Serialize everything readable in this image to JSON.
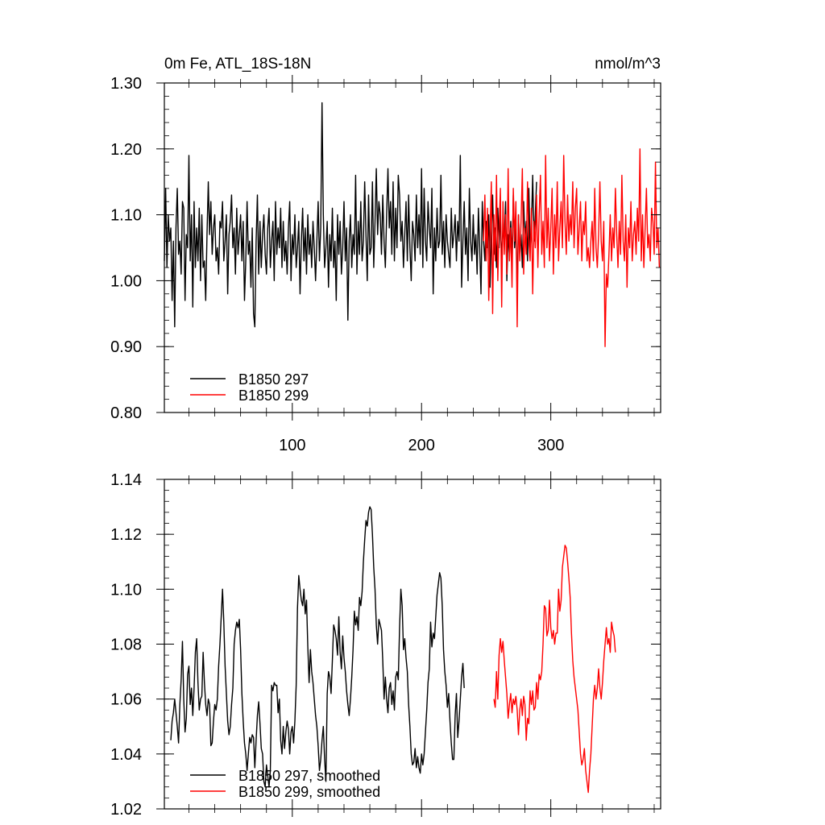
{
  "chart_data": [
    {
      "type": "line",
      "title": "0m Fe, ATL_18S-18N",
      "units": "nmol/m^3",
      "xlabel": "",
      "ylabel": "",
      "xlim": [
        1,
        385
      ],
      "ylim": [
        0.8,
        1.3
      ],
      "xticks": [
        100,
        200,
        300
      ],
      "xtick_labels": [
        "100",
        "200",
        "300"
      ],
      "yticks": [
        0.8,
        0.9,
        1.0,
        1.1,
        1.2,
        1.3
      ],
      "ytick_labels": [
        "0.80",
        "0.90",
        "1.00",
        "1.10",
        "1.20",
        "1.30"
      ],
      "grid": false,
      "legend_position": "bottom-left",
      "series": [
        {
          "name": "B1850 297",
          "color": "#000000",
          "x_start": 1,
          "values": [
            1.03,
            1.14,
            1.02,
            1.1,
            1.06,
            1.08,
            0.97,
            1.06,
            0.93,
            1.08,
            1.14,
            1.04,
            1.06,
            1.01,
            1.12,
            1.11,
            0.97,
            1.07,
            1.05,
            1.19,
            1.03,
            1.1,
            0.96,
            1.12,
            1.02,
            1.08,
            1.03,
            1.11,
            1.0,
            1.1,
            1.02,
            1.03,
            0.97,
            1.07,
            1.15,
            1.07,
            1.12,
            1.04,
            1.08,
            1.1,
            1.03,
            1.05,
            1.01,
            1.09,
            1.08,
            1.12,
            1.03,
            1.06,
            1.1,
            0.98,
            1.07,
            1.09,
            1.13,
            1.05,
            1.08,
            1.01,
            1.11,
            1.04,
            1.07,
            1.1,
            1.03,
            1.09,
            0.97,
            1.03,
            1.12,
            1.04,
            1.06,
            0.99,
            1.08,
            0.95,
            0.93,
            1.06,
            1.13,
            1.01,
            1.09,
            1.02,
            1.07,
            1.1,
            1.04,
            1.01,
            1.08,
            1.11,
            1.02,
            1.06,
            1.09,
            1.0,
            1.12,
            1.04,
            1.08,
            1.05,
            1.11,
            1.02,
            1.09,
            1.03,
            1.06,
            1.01,
            1.08,
            1.12,
            1.0,
            1.07,
            1.04,
            1.1,
            1.02,
            1.05,
            1.09,
            0.98,
            1.06,
            1.11,
            1.03,
            1.08,
            1.01,
            1.1,
            1.04,
            1.07,
            1.02,
            1.09,
            1.05,
            1.0,
            1.06,
            1.12,
            1.03,
            1.08,
            1.27,
            1.1,
            1.02,
            1.05,
            1.09,
            0.99,
            1.07,
            1.03,
            1.11,
            1.02,
            1.06,
            0.97,
            1.1,
            1.04,
            1.09,
            1.01,
            1.05,
            1.12,
            1.03,
            1.08,
            0.94,
            1.06,
            1.1,
            1.02,
            1.07,
            1.04,
            1.16,
            1.01,
            1.09,
            1.04,
            1.12,
            1.03,
            1.06,
            1.15,
            1.07,
            1.0,
            1.13,
            1.04,
            1.05,
            1.15,
            1.02,
            1.09,
            1.17,
            1.07,
            1.12,
            1.1,
            1.04,
            1.13,
            1.06,
            1.02,
            1.1,
            1.17,
            1.08,
            1.12,
            1.04,
            1.15,
            1.03,
            1.11,
            1.05,
            1.16,
            1.13,
            1.06,
            1.09,
            1.02,
            1.07,
            1.12,
            1.03,
            1.13,
            1.05,
            1.0,
            1.09,
            1.07,
            1.03,
            1.13,
            1.05,
            1.1,
            1.04,
            1.17,
            1.02,
            1.14,
            1.06,
            1.03,
            1.12,
            1.08,
            1.05,
            1.14,
            0.98,
            1.08,
            1.03,
            1.11,
            1.05,
            1.06,
            1.16,
            1.04,
            1.09,
            1.02,
            1.1,
            1.06,
            1.04,
            1.02,
            1.11,
            1.05,
            1.07,
            1.1,
            1.03,
            1.09,
            1.06,
            1.19,
            0.99,
            1.06,
            1.12,
            1.04,
            1.08,
            1.0,
            1.14,
            1.06,
            1.03,
            1.1,
            1.04,
            1.07,
            1.01,
            1.11,
            1.05,
            0.98,
            1.12,
            1.06,
            1.03,
            1.09,
            1.05,
            1.1,
            0.99,
            1.07,
            1.13,
            1.04,
            1.08,
            1.02,
            1.11,
            1.05,
            1.1,
            1.03,
            1.08,
            1.06,
            1.12,
            1.0,
            1.07,
            1.04,
            1.09,
            1.03,
            1.13,
            1.05,
            1.08,
            0.98,
            1.1,
            1.04,
            1.07,
            1.02,
            1.12,
            1.06,
            1.09,
            1.03,
            1.14,
            1.05,
            1.08,
            1.16,
            1.06,
            1.1,
            1.15
          ]
        },
        {
          "name": "B1850 299",
          "color": "#ff0000",
          "x_start": 248,
          "values": [
            1.06,
            1.13,
            1.03,
            1.11,
            0.97,
            1.07,
            1.15,
            0.95,
            1.1,
            1.03,
            1.16,
            1.0,
            1.08,
            1.14,
            0.96,
            1.12,
            1.04,
            1.1,
            1.01,
            1.17,
            1.03,
            1.08,
            0.99,
            1.14,
            1.06,
            1.12,
            0.93,
            1.1,
            1.03,
            1.09,
            1.17,
            1.01,
            1.08,
            1.04,
            1.15,
            1.06,
            1.03,
            1.11,
            0.98,
            1.09,
            1.05,
            1.13,
            1.02,
            1.1,
            1.16,
            1.04,
            1.09,
            1.02,
            1.19,
            1.05,
            1.11,
            1.03,
            1.08,
            1.14,
            1.01,
            1.1,
            1.05,
            1.15,
            1.03,
            1.08,
            1.12,
            1.05,
            1.19,
            1.09,
            1.04,
            1.13,
            1.06,
            1.1,
            1.07,
            1.15,
            1.05,
            1.11,
            1.14,
            1.04,
            1.08,
            1.12,
            1.03,
            1.09,
            1.07,
            1.12,
            1.03,
            1.05,
            1.02,
            1.06,
            1.09,
            1.03,
            1.14,
            1.05,
            1.02,
            1.07,
            1.15,
            1.06,
            1.03,
            1.09,
            0.9,
            1.01,
            0.99,
            1.04,
            1.1,
            1.03,
            1.08,
            1.05,
            1.14,
            1.07,
            1.02,
            1.09,
            1.04,
            1.16,
            1.06,
            1.03,
            1.1,
            0.99,
            1.08,
            1.05,
            1.12,
            1.03,
            1.07,
            1.09,
            1.04,
            1.11,
            1.06,
            1.2,
            1.03,
            1.1,
            1.02,
            1.08,
            1.14,
            1.05,
            1.07,
            1.03,
            1.11,
            1.09,
            1.04,
            1.18,
            1.05,
            1.08,
            1.02
          ]
        }
      ]
    },
    {
      "type": "line",
      "title": "",
      "xlabel": "",
      "ylabel": "",
      "xlim": [
        1,
        385
      ],
      "ylim": [
        1.02,
        1.14
      ],
      "xticks": [
        100,
        200,
        300
      ],
      "yticks": [
        1.02,
        1.04,
        1.06,
        1.08,
        1.1,
        1.12,
        1.14
      ],
      "ytick_labels": [
        "1.02",
        "1.04",
        "1.06",
        "1.08",
        "1.10",
        "1.12",
        "1.14"
      ],
      "grid": false,
      "legend_position": "bottom-left",
      "series": [
        {
          "name": "B1850 297, smoothed",
          "color": "#000000",
          "x_start": 6,
          "values": [
            1.045,
            1.052,
            1.055,
            1.06,
            1.055,
            1.05,
            1.044,
            1.058,
            1.067,
            1.081,
            1.06,
            1.048,
            1.053,
            1.069,
            1.072,
            1.058,
            1.064,
            1.054,
            1.064,
            1.077,
            1.082,
            1.066,
            1.056,
            1.06,
            1.061,
            1.077,
            1.066,
            1.058,
            1.054,
            1.06,
            1.058,
            1.043,
            1.044,
            1.052,
            1.058,
            1.056,
            1.06,
            1.072,
            1.08,
            1.09,
            1.1,
            1.088,
            1.072,
            1.062,
            1.052,
            1.047,
            1.05,
            1.058,
            1.064,
            1.08,
            1.085,
            1.088,
            1.086,
            1.089,
            1.078,
            1.062,
            1.052,
            1.044,
            1.04,
            1.034,
            1.04,
            1.046,
            1.044,
            1.047,
            1.046,
            1.035,
            1.045,
            1.054,
            1.059,
            1.051,
            1.042,
            1.04,
            1.03,
            1.028,
            1.036,
            1.032,
            1.028,
            1.034,
            1.065,
            1.063,
            1.066,
            1.065,
            1.065,
            1.055,
            1.06,
            1.045,
            1.04,
            1.05,
            1.042,
            1.048,
            1.052,
            1.049,
            1.04,
            1.048,
            1.05,
            1.044,
            1.052,
            1.065,
            1.093,
            1.105,
            1.1,
            1.096,
            1.094,
            1.1,
            1.091,
            1.096,
            1.079,
            1.066,
            1.078,
            1.07,
            1.066,
            1.06,
            1.054,
            1.05,
            1.043,
            1.034,
            1.038,
            1.045,
            1.05,
            1.038,
            1.03,
            1.062,
            1.07,
            1.068,
            1.062,
            1.074,
            1.087,
            1.085,
            1.082,
            1.076,
            1.09,
            1.077,
            1.071,
            1.083,
            1.075,
            1.07,
            1.063,
            1.058,
            1.054,
            1.06,
            1.068,
            1.078,
            1.092,
            1.087,
            1.09,
            1.085,
            1.097,
            1.094,
            1.099,
            1.11,
            1.118,
            1.125,
            1.123,
            1.128,
            1.13,
            1.129,
            1.12,
            1.108,
            1.1,
            1.087,
            1.08,
            1.089,
            1.087,
            1.085,
            1.074,
            1.06,
            1.068,
            1.06,
            1.055,
            1.064,
            1.066,
            1.058,
            1.063,
            1.056,
            1.068,
            1.07,
            1.067,
            1.086,
            1.1,
            1.094,
            1.078,
            1.082,
            1.075,
            1.07,
            1.058,
            1.05,
            1.04,
            1.036,
            1.037,
            1.042,
            1.035,
            1.039,
            1.035,
            1.033,
            1.04,
            1.036,
            1.04,
            1.048,
            1.056,
            1.066,
            1.071,
            1.088,
            1.079,
            1.084,
            1.082,
            1.09,
            1.098,
            1.102,
            1.106,
            1.104,
            1.094,
            1.078,
            1.07,
            1.065,
            1.057,
            1.062,
            1.052,
            1.044,
            1.038,
            1.038,
            1.054,
            1.062,
            1.046,
            1.052,
            1.06,
            1.068,
            1.073,
            1.064
          ]
        },
        {
          "name": "B1850 299, smoothed",
          "color": "#ff0000",
          "x_start": 256,
          "values": [
            1.06,
            1.057,
            1.07,
            1.06,
            1.076,
            1.082,
            1.077,
            1.081,
            1.074,
            1.068,
            1.062,
            1.053,
            1.058,
            1.062,
            1.055,
            1.06,
            1.058,
            1.061,
            1.056,
            1.047,
            1.056,
            1.06,
            1.054,
            1.061,
            1.058,
            1.045,
            1.053,
            1.051,
            1.063,
            1.058,
            1.063,
            1.056,
            1.057,
            1.066,
            1.06,
            1.069,
            1.067,
            1.07,
            1.08,
            1.094,
            1.093,
            1.083,
            1.085,
            1.096,
            1.086,
            1.082,
            1.085,
            1.08,
            1.084,
            1.084,
            1.1,
            1.092,
            1.096,
            1.108,
            1.112,
            1.116,
            1.115,
            1.11,
            1.104,
            1.097,
            1.084,
            1.074,
            1.068,
            1.064,
            1.06,
            1.056,
            1.048,
            1.04,
            1.036,
            1.038,
            1.042,
            1.034,
            1.03,
            1.026,
            1.034,
            1.04,
            1.05,
            1.06,
            1.065,
            1.06,
            1.064,
            1.071,
            1.064,
            1.06,
            1.066,
            1.074,
            1.08,
            1.086,
            1.08,
            1.082,
            1.077,
            1.088,
            1.085,
            1.083,
            1.077
          ]
        }
      ]
    }
  ]
}
